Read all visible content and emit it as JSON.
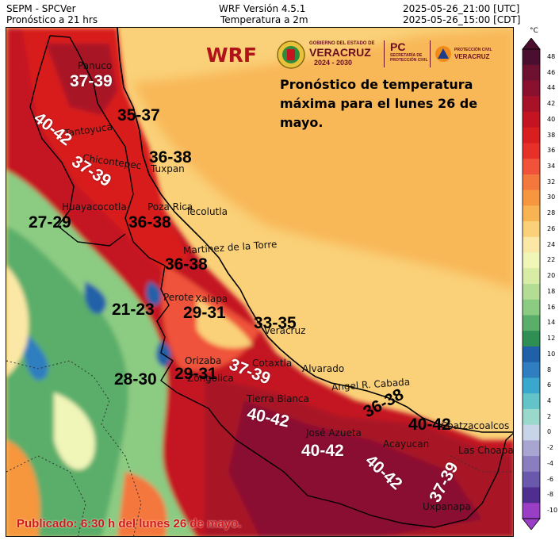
{
  "header": {
    "left_line1": "SEPM - SPCVer",
    "left_line2": "Pronóstico a 21 hrs",
    "center_line1": "WRF Versión 4.5.1",
    "center_line2": "Temperatura a 2m",
    "right_line1": "2025-05-26_21:00 [UTC]",
    "right_line2": "2025-05-26_15:00 [CDT]"
  },
  "map": {
    "model_label": "WRF",
    "forecast_title": "Pronóstico de temperatura máxima para el lunes 26 de mayo.",
    "published": "Publicado: 6:30 h del lunes 26 de mayo.",
    "logos": {
      "gov_line1": "GOBIERNO DEL ESTADO DE",
      "gov_line2": "VERACRUZ",
      "gov_line3": "2024 - 2030",
      "pc_label": "PC",
      "pc_sub1": "SECRETARÍA DE",
      "pc_sub2": "PROTECCIÓN CIVIL",
      "prot_line1": "PROTECCIÓN CIVIL",
      "prot_line2": "VERACRUZ"
    },
    "cities": {
      "panuco": "Panuco",
      "tantoyuca": "Tantoyuca",
      "chicontepec": "Chicontepec",
      "tuxpan": "Tuxpan",
      "huayacocotla": "Huayacocotla",
      "poza_rica": "Poza Rica",
      "tecolutla": "Tecolutla",
      "martinez": "Martinez de la Torre",
      "perote": "Perote",
      "xalapa": "Xalapa",
      "veracruz": "Veracruz",
      "orizaba": "Orizaba",
      "zongolica": "Zongolica",
      "cotaxtla": "Cotaxtla",
      "alvarado": "Alvarado",
      "cabada": "Angel R. Cabada",
      "tierra_blanca": "Tierra Blanca",
      "azueta": "José Azueta",
      "acayucan": "Acayucan",
      "coatzacoalcos": "Coatzacoalcos",
      "choapas": "Las Choapas",
      "uxpanapa": "Uxpanapa"
    },
    "ranges": {
      "r1": "37-39",
      "r2": "40-42",
      "r3": "35-37",
      "r4": "36-38",
      "r5": "37-39",
      "r6": "27-29",
      "r7": "36-38",
      "r8": "36-38",
      "r9": "21-23",
      "r10": "29-31",
      "r11": "33-35",
      "r12": "28-30",
      "r13": "29-31",
      "r14": "37-39",
      "r15": "40-42",
      "r16": "36-38",
      "r17": "40-42",
      "r18": "40-42",
      "r19": "40-42",
      "r20": "37-39"
    }
  },
  "colorbar": {
    "unit": "°C",
    "ticks": [
      "48",
      "46",
      "44",
      "42",
      "40",
      "38",
      "36",
      "34",
      "32",
      "30",
      "28",
      "26",
      "24",
      "22",
      "20",
      "18",
      "16",
      "14",
      "12",
      "10",
      "8",
      "6",
      "4",
      "2",
      "0",
      "-2",
      "-4",
      "-6",
      "-8",
      "-10"
    ],
    "colors": [
      "#4a0e2e",
      "#6e1030",
      "#8a1030",
      "#a81228",
      "#c41422",
      "#d81e1e",
      "#e8302a",
      "#f0523a",
      "#f4773e",
      "#f6963e",
      "#f8b452",
      "#fad078",
      "#fce8a6",
      "#f0f5b8",
      "#d8eca6",
      "#b4dc94",
      "#8ccb82",
      "#5aae6a",
      "#2e8e54",
      "#2060a8",
      "#2e7ec0",
      "#3aa8cc",
      "#62c4c8",
      "#9ad8cc",
      "#c8d4e8",
      "#a8a6d0",
      "#8a7ec0",
      "#6a58ac",
      "#4e2e8e",
      "#9a3ec6"
    ]
  }
}
